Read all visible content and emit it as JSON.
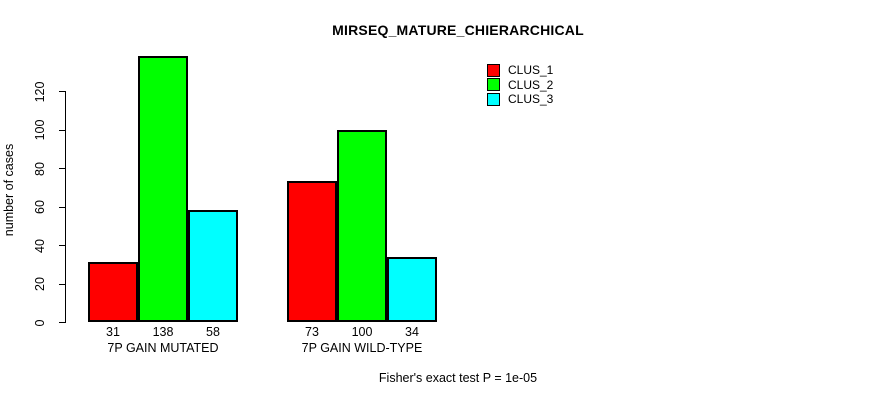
{
  "chart_data": {
    "type": "bar",
    "title": "MIRSEQ_MATURE_CHIERARCHICAL",
    "ylabel": "number of cases",
    "xlabel": "",
    "categories": [
      "7P GAIN MUTATED",
      "7P GAIN WILD-TYPE"
    ],
    "series": [
      {
        "name": "CLUS_1",
        "color": "#FF0000",
        "values": [
          31,
          73
        ]
      },
      {
        "name": "CLUS_2",
        "color": "#00FF00",
        "values": [
          138,
          100
        ]
      },
      {
        "name": "CLUS_3",
        "color": "#00FFFF",
        "values": [
          58,
          34
        ]
      }
    ],
    "yticks": [
      0,
      20,
      40,
      60,
      80,
      100,
      120
    ],
    "ylim": [
      0,
      140
    ],
    "grid": false,
    "bar_value_labels": true,
    "legend": {
      "position": "top-right",
      "entries": [
        "CLUS_1",
        "CLUS_2",
        "CLUS_3"
      ]
    },
    "annotation": "Fisher's exact test P = 1e-05"
  },
  "colors": {
    "axis": "#000000",
    "text": "#000000",
    "background": "#FFFFFF",
    "clus_1": "#FF0000",
    "clus_2": "#00FF00",
    "clus_3": "#00FFFF"
  }
}
